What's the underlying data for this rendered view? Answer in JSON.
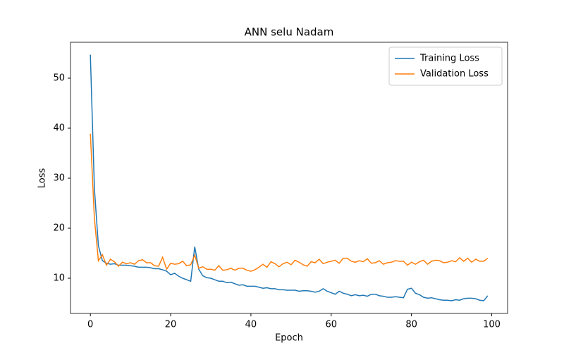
{
  "chart_data": {
    "type": "line",
    "title": "ANN selu Nadam",
    "x_label": "Epoch",
    "y_label": "Loss",
    "x": [
      0,
      1,
      2,
      3,
      4,
      5,
      6,
      7,
      8,
      9,
      10,
      11,
      12,
      13,
      14,
      15,
      16,
      17,
      18,
      19,
      20,
      21,
      22,
      23,
      24,
      25,
      26,
      27,
      28,
      29,
      30,
      31,
      32,
      33,
      34,
      35,
      36,
      37,
      38,
      39,
      40,
      41,
      42,
      43,
      44,
      45,
      46,
      47,
      48,
      49,
      50,
      51,
      52,
      53,
      54,
      55,
      56,
      57,
      58,
      59,
      60,
      61,
      62,
      63,
      64,
      65,
      66,
      67,
      68,
      69,
      70,
      71,
      72,
      73,
      74,
      75,
      76,
      77,
      78,
      79,
      80,
      81,
      82,
      83,
      84,
      85,
      86,
      87,
      88,
      89,
      90,
      91,
      92,
      93,
      94,
      95,
      96,
      97,
      98,
      99
    ],
    "series": [
      {
        "name": "Training Loss",
        "color": "#1f77b4",
        "values": [
          54.7,
          28,
          16.5,
          13.5,
          13,
          12.8,
          12.9,
          12.6,
          12.6,
          12.6,
          12.5,
          12.4,
          12.2,
          12.2,
          12.2,
          12.1,
          11.9,
          11.9,
          11.7,
          11.4,
          10.7,
          11,
          10.4,
          10,
          9.7,
          9.4,
          16.3,
          11.8,
          10.5,
          10.1,
          10,
          9.7,
          9.4,
          9.4,
          9.1,
          9.2,
          8.9,
          8.6,
          8.7,
          8.4,
          8.4,
          8.4,
          8.2,
          8,
          8.1,
          7.9,
          7.9,
          7.7,
          7.7,
          7.6,
          7.6,
          7.6,
          7.4,
          7.5,
          7.5,
          7.4,
          7.2,
          7.4,
          7.9,
          7.4,
          7.1,
          6.8,
          7.4,
          7,
          6.8,
          6.5,
          6.7,
          6.5,
          6.6,
          6.4,
          6.8,
          6.8,
          6.5,
          6.4,
          6.2,
          6.2,
          6.3,
          6.2,
          6.1,
          7.8,
          8,
          7,
          6.7,
          6.2,
          6,
          6.1,
          5.9,
          5.7,
          5.6,
          5.6,
          5.5,
          5.7,
          5.6,
          5.9,
          6,
          6,
          5.9,
          5.6,
          5.5,
          6.5
        ]
      },
      {
        "name": "Validation Loss",
        "color": "#ff7f0e",
        "values": [
          38.9,
          22,
          13.5,
          14.7,
          12.6,
          13.8,
          13.3,
          12.4,
          13.2,
          12.9,
          13.1,
          12.8,
          13.5,
          13.7,
          13.1,
          13.1,
          12.5,
          12.4,
          14.2,
          11.8,
          13,
          12.8,
          12.9,
          13.4,
          12.5,
          12.7,
          14.6,
          12,
          12.3,
          11.8,
          11.8,
          11.6,
          12.5,
          11.6,
          11.7,
          12,
          11.6,
          12,
          12,
          11.6,
          11.4,
          11.7,
          12.2,
          12.8,
          12.2,
          13.3,
          12.9,
          12.3,
          12.9,
          13.2,
          12.7,
          13.6,
          13.2,
          12.7,
          12.4,
          13.3,
          13.1,
          13.8,
          12.9,
          13.2,
          13.4,
          13.6,
          13,
          14,
          14,
          13.4,
          13.2,
          13.5,
          13.3,
          13.9,
          13,
          13.1,
          13.5,
          12.8,
          13.1,
          13.2,
          13.5,
          13.4,
          13.4,
          12.6,
          13.2,
          12.8,
          13.3,
          13.6,
          12.8,
          13.4,
          13.6,
          13.5,
          13.1,
          13.2,
          13.5,
          13.3,
          14.1,
          13.4,
          14,
          13.2,
          13.8,
          13.4,
          13.4,
          14
        ]
      }
    ],
    "xlim": [
      -4.95,
      103.95
    ],
    "xticks": [
      0,
      20,
      40,
      60,
      80,
      100
    ],
    "ylim": [
      2.96,
      57.18
    ],
    "yticks": [
      10,
      20,
      30,
      40,
      50
    ],
    "legend": "upper right"
  }
}
